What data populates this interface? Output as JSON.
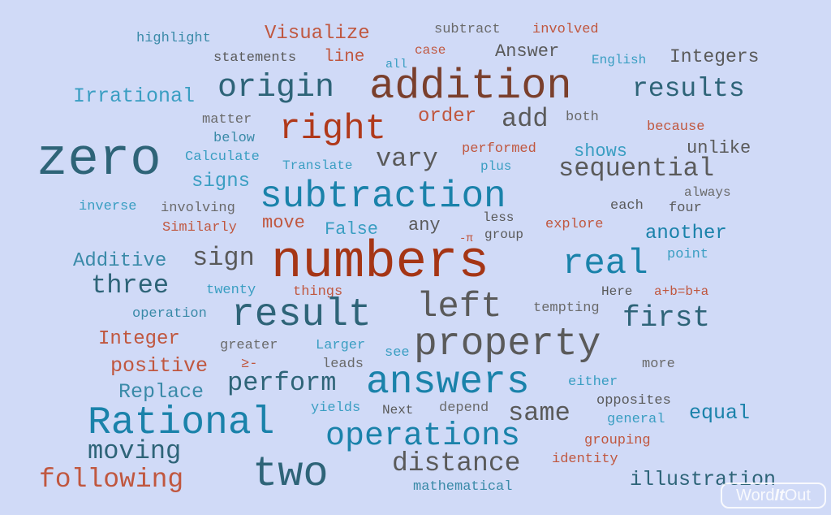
{
  "colors": {
    "background": "#d0daf7",
    "dark_red": "#a03a1c",
    "red": "#c0573f",
    "teal_dark": "#2e6478",
    "blue": "#1a82aa",
    "blue_light": "#3a9ec2",
    "gray": "#5a5a5a",
    "brown": "#7a3f2c"
  },
  "words": [
    "highlight",
    "Visualize",
    "subtract",
    "involved",
    "statements",
    "line",
    "all",
    "case",
    "Answer",
    "English",
    "Integers",
    "Irrational",
    "origin",
    "addition",
    "results",
    "matter",
    "right",
    "order",
    "add",
    "both",
    "because",
    "below",
    "zero",
    "Calculate",
    "Translate",
    "vary",
    "performed",
    "shows",
    "unlike",
    "plus",
    "sequential",
    "signs",
    "subtraction",
    "inverse",
    "involving",
    "each",
    "always",
    "four",
    "Similarly",
    "move",
    "False",
    "any",
    "less",
    "explore",
    "-π",
    "group",
    "another",
    "Additive",
    "sign",
    "numbers",
    "real",
    "point",
    "three",
    "twenty",
    "things",
    "Here",
    "a+b=b+a",
    "operation",
    "result",
    "left",
    "tempting",
    "first",
    "Integer",
    "greater",
    "Larger",
    "see",
    "property",
    "positive",
    "≥-",
    "leads",
    "more",
    "perform",
    "answers",
    "either",
    "Replace",
    "yields",
    "Next",
    "depend",
    "opposites",
    "Rational",
    "same",
    "equal",
    "general",
    "operations",
    "moving",
    "grouping",
    "distance",
    "identity",
    "two",
    "following",
    "illustration",
    "mathematical"
  ],
  "logo": {
    "prefix": "Word",
    "middle": "It",
    "suffix": "Out"
  }
}
